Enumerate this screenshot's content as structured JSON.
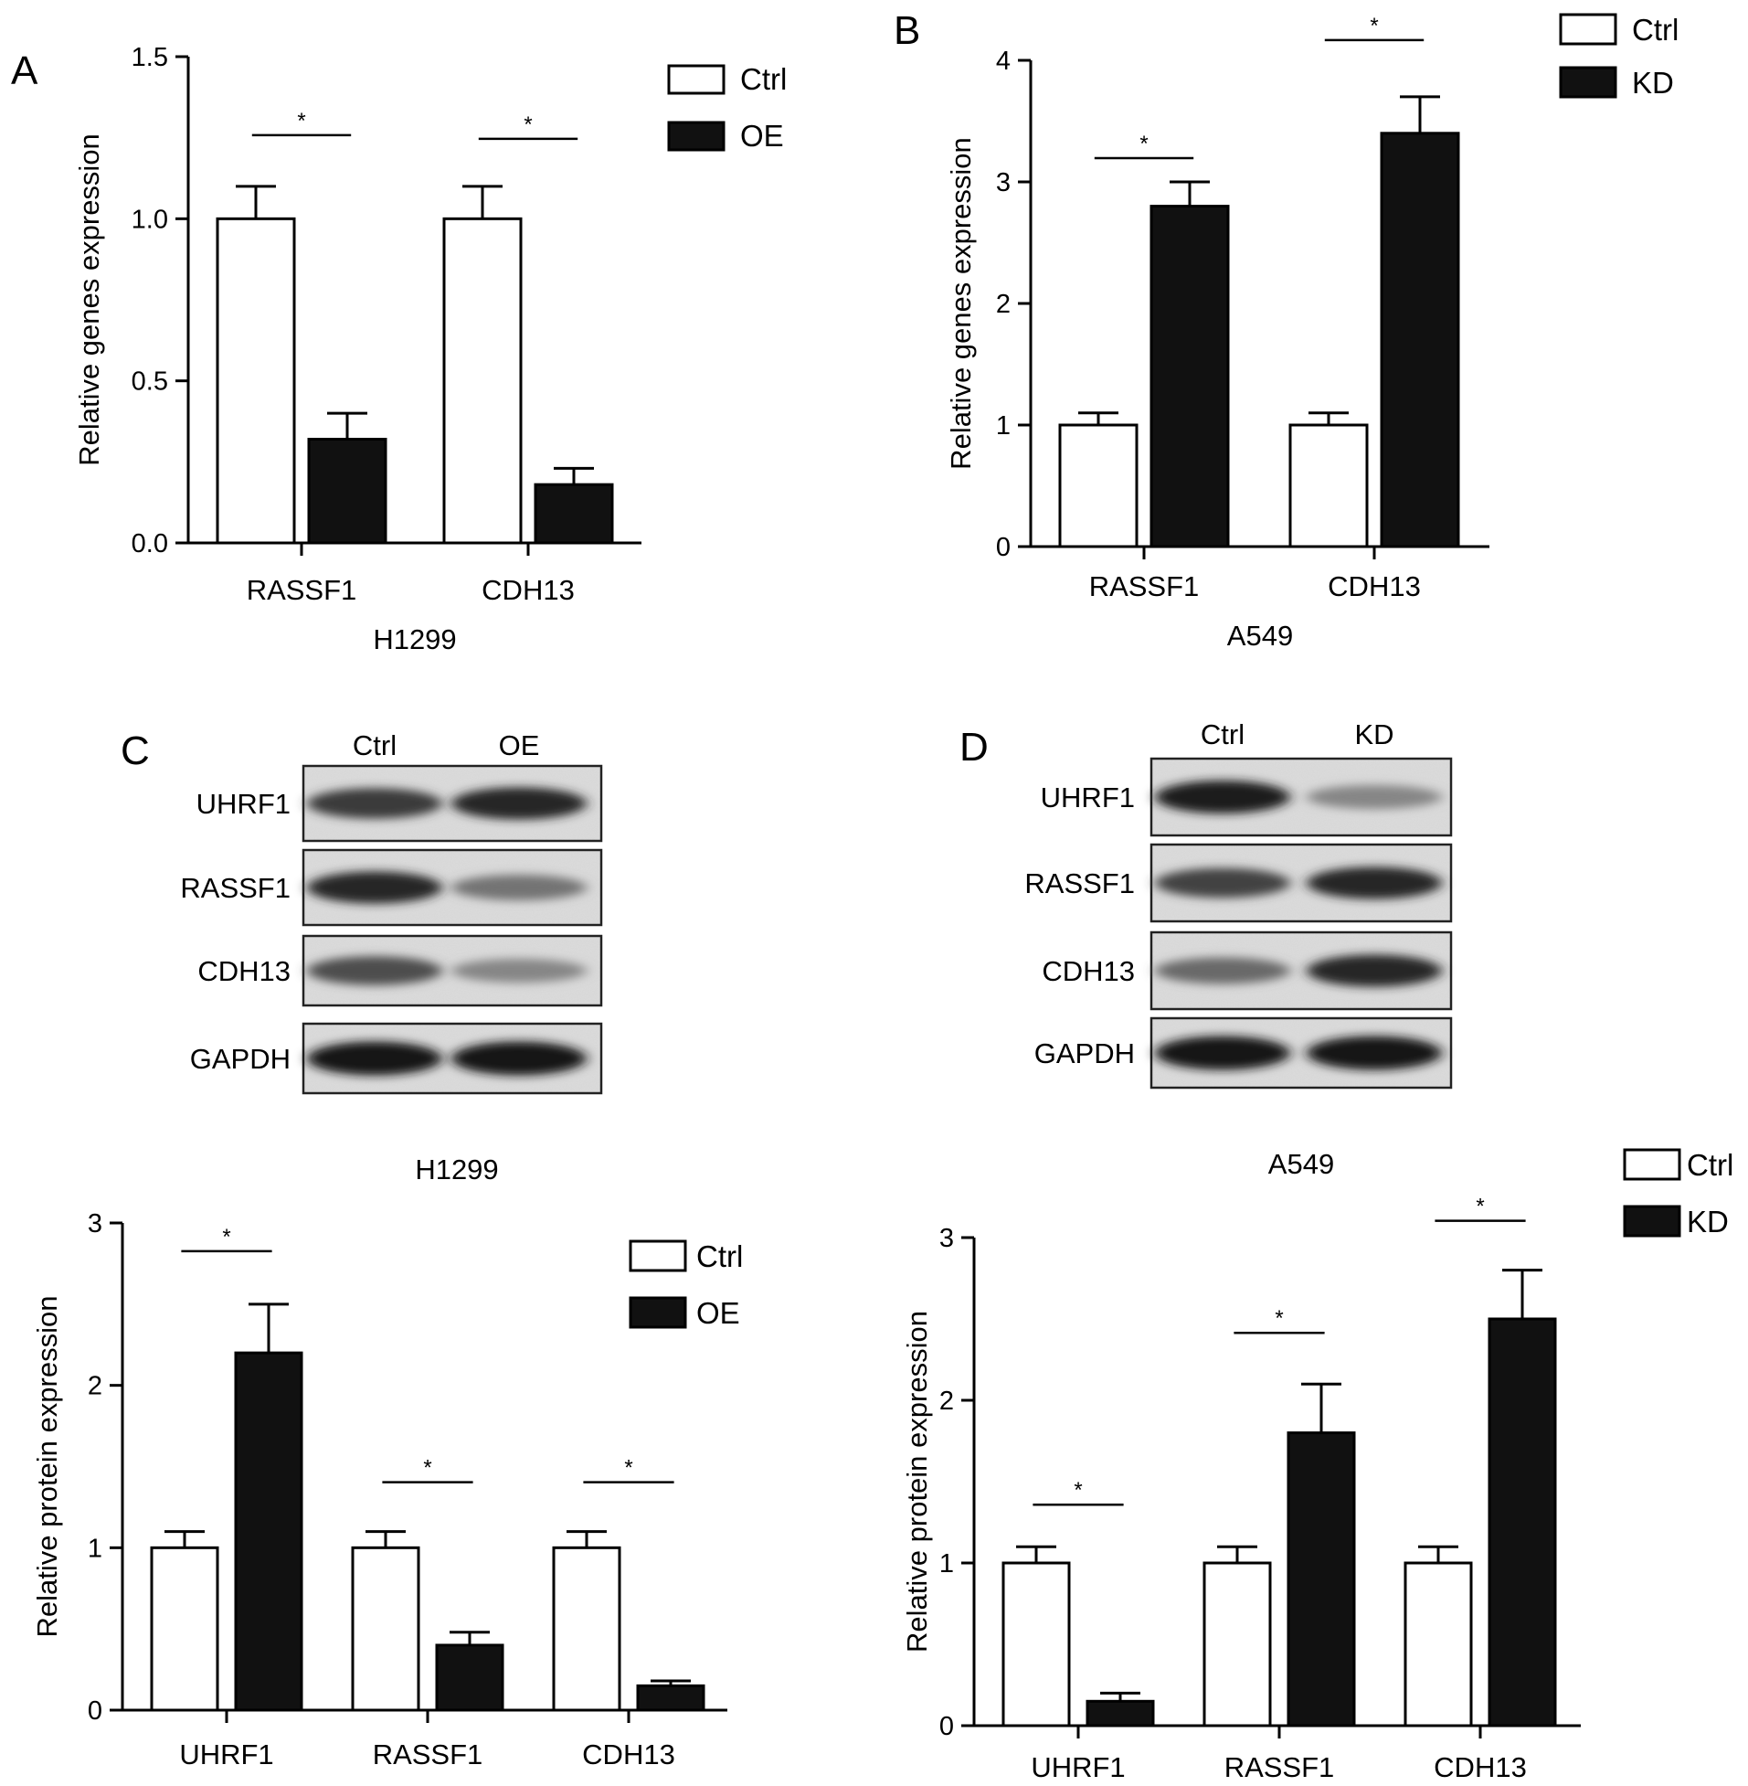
{
  "panels": [
    {
      "letter": "A"
    },
    {
      "letter": "B"
    },
    {
      "letter": "C"
    },
    {
      "letter": "D"
    }
  ],
  "chart_data": [
    {
      "type": "bar",
      "panel": "A",
      "categories": [
        "RASSF1",
        "CDH13"
      ],
      "xlabel": "H1299",
      "ylabel": "Relative genes expression",
      "ylim": [
        0,
        1.5
      ],
      "yticks": [
        "0.0",
        "0.5",
        "1.0",
        "1.5"
      ],
      "legend_position": "top-right",
      "series": [
        {
          "name": "Ctrl",
          "fill": "#ffffff",
          "values": [
            1.0,
            1.0
          ],
          "errors": [
            0.1,
            0.1
          ]
        },
        {
          "name": "OE",
          "fill": "#111111",
          "values": [
            0.32,
            0.18
          ],
          "errors": [
            0.08,
            0.05
          ]
        }
      ],
      "significance": [
        "*",
        "*"
      ]
    },
    {
      "type": "bar",
      "panel": "B",
      "categories": [
        "RASSF1",
        "CDH13"
      ],
      "xlabel": "A549",
      "ylabel": "Relative genes expression",
      "ylim": [
        0,
        4
      ],
      "yticks": [
        "0",
        "1",
        "2",
        "3",
        "4"
      ],
      "legend_position": "top-right",
      "series": [
        {
          "name": "Ctrl",
          "fill": "#ffffff",
          "values": [
            1.0,
            1.0
          ],
          "errors": [
            0.1,
            0.1
          ]
        },
        {
          "name": "KD",
          "fill": "#111111",
          "values": [
            2.8,
            3.4
          ],
          "errors": [
            0.2,
            0.3
          ]
        }
      ],
      "significance": [
        "*",
        "*"
      ]
    },
    {
      "type": "bar",
      "panel": "C",
      "categories": [
        "UHRF1",
        "RASSF1",
        "CDH13"
      ],
      "title": "H1299",
      "ylabel": "Relative protein expression",
      "ylim": [
        0,
        3
      ],
      "yticks": [
        "0",
        "1",
        "2",
        "3"
      ],
      "legend_position": "top-right",
      "series": [
        {
          "name": "Ctrl",
          "fill": "#ffffff",
          "values": [
            1.0,
            1.0,
            1.0
          ],
          "errors": [
            0.1,
            0.1,
            0.1
          ]
        },
        {
          "name": "OE",
          "fill": "#111111",
          "values": [
            2.2,
            0.4,
            0.15
          ],
          "errors": [
            0.3,
            0.08,
            0.03
          ]
        }
      ],
      "significance": [
        "*",
        "*",
        "*"
      ]
    },
    {
      "type": "bar",
      "panel": "D",
      "categories": [
        "UHRF1",
        "RASSF1",
        "CDH13"
      ],
      "title": "A549",
      "ylabel": "Relative protein expression",
      "ylim": [
        0,
        3
      ],
      "yticks": [
        "0",
        "1",
        "2",
        "3"
      ],
      "legend_position": "top-right",
      "series": [
        {
          "name": "Ctrl",
          "fill": "#ffffff",
          "values": [
            1.0,
            1.0,
            1.0
          ],
          "errors": [
            0.1,
            0.1,
            0.1
          ]
        },
        {
          "name": "KD",
          "fill": "#111111",
          "values": [
            0.15,
            1.8,
            2.5
          ],
          "errors": [
            0.05,
            0.3,
            0.3
          ]
        }
      ],
      "significance": [
        "*",
        "*",
        "*"
      ]
    }
  ],
  "blots": [
    {
      "panel": "C",
      "lanes": [
        "Ctrl",
        "OE"
      ],
      "rows": [
        {
          "protein": "UHRF1",
          "intensity": [
            0.75,
            0.85
          ]
        },
        {
          "protein": "RASSF1",
          "intensity": [
            0.85,
            0.45
          ]
        },
        {
          "protein": "CDH13",
          "intensity": [
            0.65,
            0.35
          ]
        },
        {
          "protein": "GAPDH",
          "intensity": [
            0.95,
            0.95
          ]
        }
      ]
    },
    {
      "panel": "D",
      "lanes": [
        "Ctrl",
        "KD"
      ],
      "rows": [
        {
          "protein": "UHRF1",
          "intensity": [
            0.9,
            0.35
          ]
        },
        {
          "protein": "RASSF1",
          "intensity": [
            0.7,
            0.85
          ]
        },
        {
          "protein": "CDH13",
          "intensity": [
            0.5,
            0.85
          ]
        },
        {
          "protein": "GAPDH",
          "intensity": [
            0.95,
            0.95
          ]
        }
      ]
    }
  ]
}
